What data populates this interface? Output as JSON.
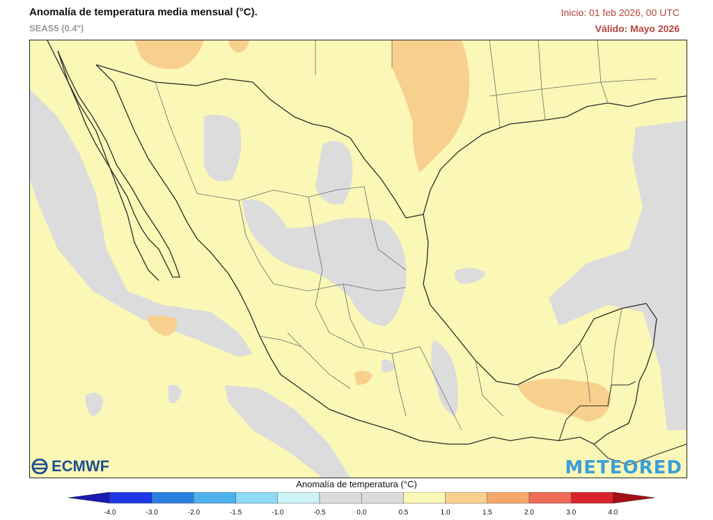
{
  "header": {
    "title": "Anomalía de temperatura media mensual (°C).",
    "model": "SEAS5 (0.4°)",
    "init": "Inicio: 01 feb 2026, 00 UTC",
    "valid": "Válido: Mayo 2026"
  },
  "logos": {
    "ecmwf": "ECMWF",
    "meteored": "METEORED"
  },
  "colorbar": {
    "label": "Anomalía de temperatura (°C)",
    "ticks": [
      "-4.0",
      "-3.0",
      "-2.0",
      "-1.5",
      "-1.0",
      "-0.5",
      "0.0",
      "0.5",
      "1.0",
      "1.5",
      "2.0",
      "3.0",
      "4.0"
    ],
    "colors": [
      "#1e36e6",
      "#2b7fe0",
      "#4fb0ee",
      "#8fdaf5",
      "#cdf3f6",
      "#dcdcdc",
      "#dcdcdc",
      "#fbf7b6",
      "#f8d08e",
      "#f6a86a",
      "#ef6b55",
      "#d8232a"
    ],
    "under_color": "#1a1ab3",
    "over_color": "#a50f15"
  },
  "map": {
    "region": "México y alrededores",
    "palette": {
      "neutral": "#fbf7b6",
      "cool": "#dcdcdc",
      "warm": "#f8d08e",
      "border": "#2a2a2a",
      "state_border": "#6a6a6a"
    }
  }
}
